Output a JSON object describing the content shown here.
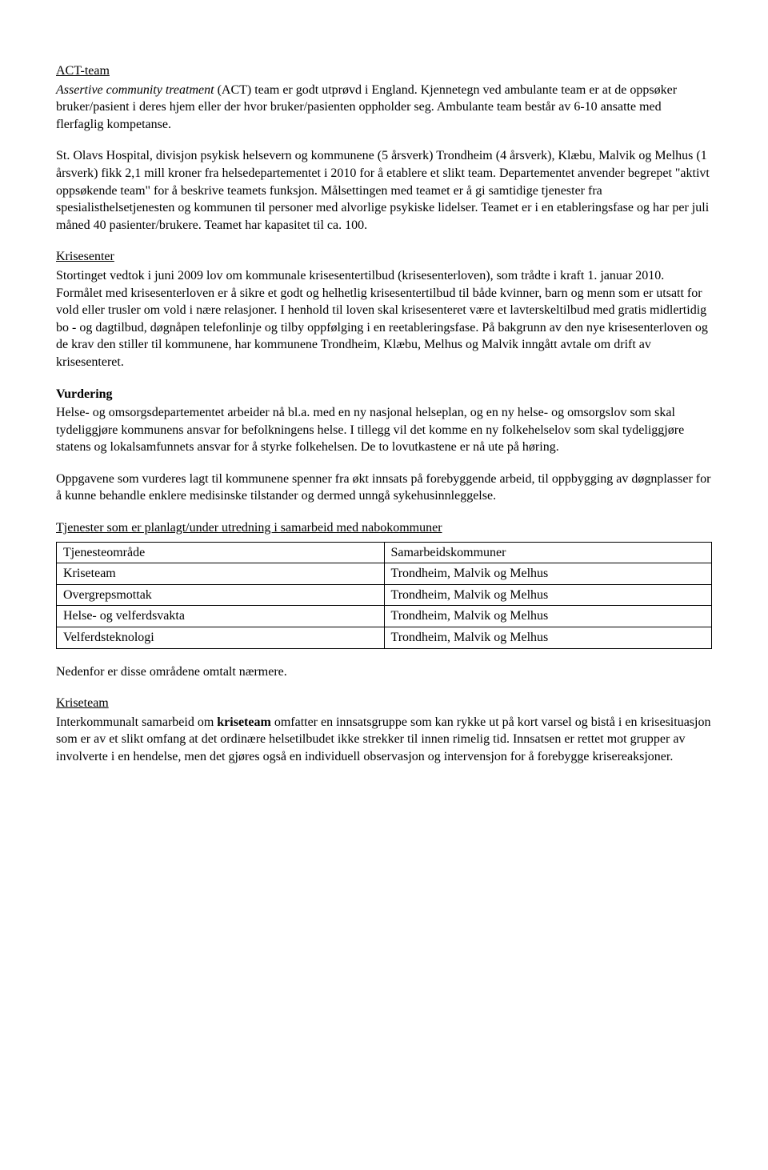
{
  "act": {
    "heading": "ACT-team",
    "p1_italic_prefix": "Assertive community treatment",
    "p1_rest": " (ACT) team er godt utprøvd i England. Kjennetegn ved ambulante team er at de oppsøker bruker/pasient i deres hjem eller der hvor bruker/pasienten oppholder seg. Ambulante team består av 6-10 ansatte med flerfaglig kompetanse.",
    "p2": "St. Olavs Hospital, divisjon psykisk helsevern og kommunene (5 årsverk) Trondheim (4 årsverk), Klæbu, Malvik og Melhus (1 årsverk) fikk 2,1 mill kroner fra helsedepartementet i 2010 for å etablere et slikt team. Departementet anvender begrepet \"aktivt oppsøkende team\" for å beskrive teamets funksjon. Målsettingen med teamet er å gi samtidige tjenester fra spesialisthelsetjenesten og kommunen til personer med alvorlige psykiske lidelser. Teamet er i en etableringsfase og har per juli måned 40 pasienter/brukere. Teamet har kapasitet til ca. 100."
  },
  "krisesenter": {
    "heading": "Krisesenter",
    "p1": "Stortinget vedtok i juni 2009 lov om kommunale krisesentertilbud (krisesenterloven), som trådte i kraft 1. januar 2010. Formålet med krisesenterloven er å sikre et godt og helhetlig krisesentertilbud til både kvinner, barn og menn som er utsatt for vold eller trusler om vold i nære relasjoner. I henhold til loven skal krisesenteret være et lavterskeltilbud med gratis midlertidig bo - og dagtilbud, døgnåpen telefonlinje og tilby oppfølging i en reetableringsfase. På bakgrunn av den nye krisesenterloven og de krav den stiller til kommunene, har kommunene Trondheim, Klæbu, Melhus og Malvik inngått avtale om drift av krisesenteret."
  },
  "vurdering": {
    "heading": "Vurdering",
    "p1": "Helse- og omsorgsdepartementet arbeider nå bl.a. med en ny nasjonal helseplan, og en ny helse- og omsorgslov som skal tydeliggjøre kommunens ansvar for befolkningens helse. I tillegg vil det komme en ny folkehelselov som skal tydeliggjøre statens og lokalsamfunnets ansvar for å styrke folkehelsen. De to lovutkastene er nå ute på høring.",
    "p2": "Oppgavene som vurderes lagt til kommunene spenner fra økt innsats på forebyggende arbeid, til oppbygging av døgnplasser for å kunne behandle enklere medisinske tilstander og dermed unngå sykehusinnleggelse."
  },
  "planned": {
    "heading": "Tjenester som er planlagt/under utredning i samarbeid med nabokommuner",
    "table": {
      "col1_header": "Tjenesteområde",
      "col2_header": "Samarbeidskommuner",
      "rows": [
        {
          "c1": "Kriseteam",
          "c2": "Trondheim, Malvik og Melhus"
        },
        {
          "c1": "Overgrepsmottak",
          "c2": "Trondheim, Malvik og Melhus"
        },
        {
          "c1": "Helse- og velferdsvakta",
          "c2": "Trondheim, Malvik og Melhus"
        },
        {
          "c1": "Velferdsteknologi",
          "c2": "Trondheim, Malvik og Melhus"
        }
      ]
    },
    "after_table": "Nedenfor er disse områdene omtalt nærmere."
  },
  "kriseteam": {
    "heading": "Kriseteam",
    "p1_pre": "Interkommunalt samarbeid om ",
    "p1_bold": "kriseteam",
    "p1_post": " omfatter en innsatsgruppe som kan rykke ut på kort varsel og bistå i en krisesituasjon som er av et slikt omfang at det ordinære helsetilbudet ikke strekker til innen rimelig tid. Innsatsen er rettet mot grupper av involverte i en hendelse, men det gjøres også en individuell observasjon og intervensjon for å forebygge krisereaksjoner."
  }
}
